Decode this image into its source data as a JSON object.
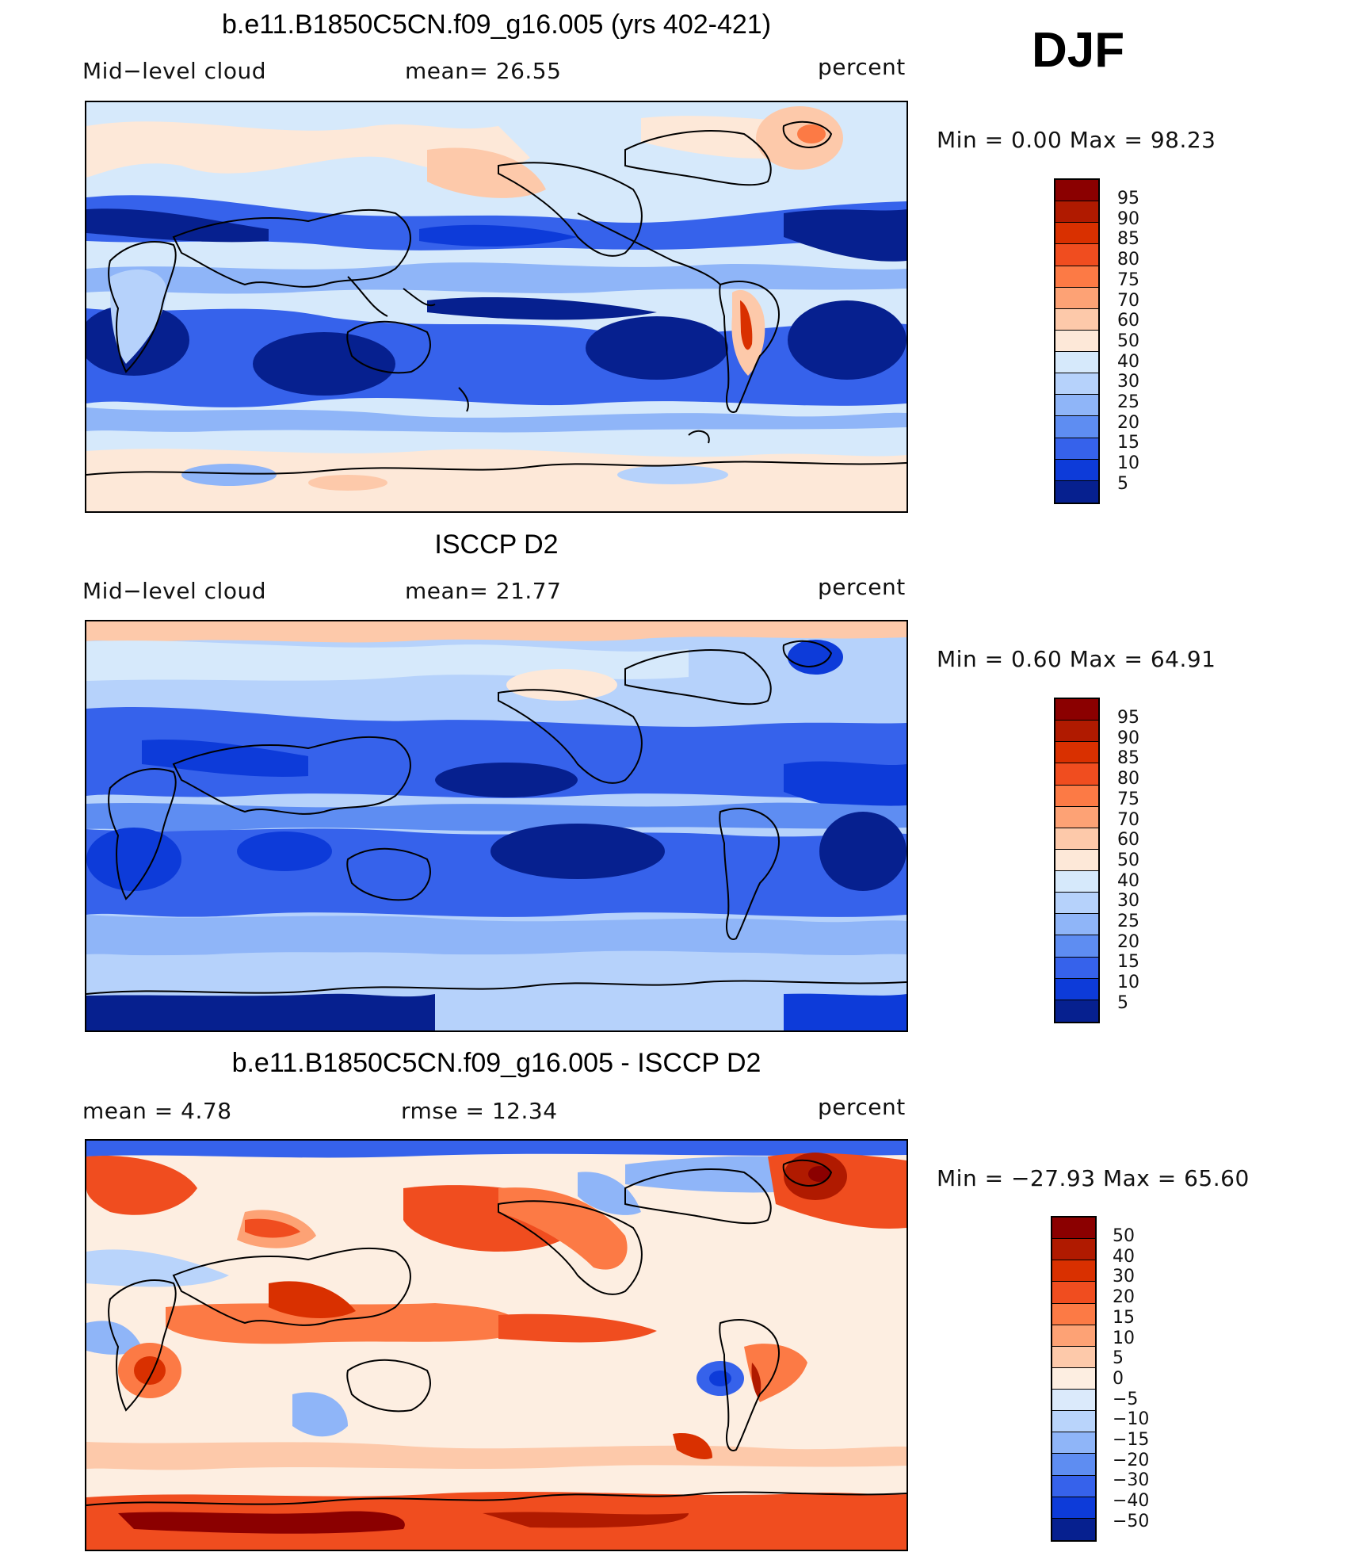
{
  "season": "DJF",
  "palettes": {
    "abs": [
      "#8b0000",
      "#b01a00",
      "#d93000",
      "#f04d1f",
      "#fc7a45",
      "#fda275",
      "#fdc9aa",
      "#fde8d8",
      "#d6e9fb",
      "#b6d2fb",
      "#8fb5f8",
      "#5e8df2",
      "#3662eb",
      "#0d3bd9",
      "#06208f"
    ],
    "diff": [
      "#8b0000",
      "#b01a00",
      "#d93000",
      "#f04d1f",
      "#fc7a45",
      "#fda275",
      "#fdc9aa",
      "#fdeee1",
      "#dbeafb",
      "#b9d4fb",
      "#8fb5f8",
      "#5e8df2",
      "#3662eb",
      "#0d3bd9",
      "#06208f"
    ]
  },
  "panels": [
    {
      "title": "b.e11.B1850C5CN.f09_g16.005 (yrs 402-421)",
      "left_label": "Mid−level  cloud",
      "center_label": "mean=   26.55",
      "right_label": "percent",
      "min_max": "Min  =      0.00  Max  =     98.23",
      "colorbar_labels": [
        "95",
        "90",
        "85",
        "80",
        "75",
        "70",
        "60",
        "50",
        "40",
        "30",
        "25",
        "20",
        "15",
        "10",
        "5"
      ]
    },
    {
      "title": "ISCCP D2",
      "left_label": "Mid−level  cloud",
      "center_label": "mean=   21.77",
      "right_label": "percent",
      "min_max": "Min  =      0.60  Max  =     64.91",
      "colorbar_labels": [
        "95",
        "90",
        "85",
        "80",
        "75",
        "70",
        "60",
        "50",
        "40",
        "30",
        "25",
        "20",
        "15",
        "10",
        "5"
      ]
    },
    {
      "title": "b.e11.B1850C5CN.f09_g16.005 - ISCCP D2",
      "left_label": "mean  =      4.78",
      "center_label": "rmse  =     12.34",
      "right_label": "percent",
      "min_max": "Min  =  −27.93  Max  =     65.60",
      "colorbar_labels": [
        "50",
        "40",
        "30",
        "20",
        "15",
        "10",
        "5",
        "0",
        "−5",
        "−10",
        "−15",
        "−20",
        "−30",
        "−40",
        "−50"
      ]
    }
  ]
}
